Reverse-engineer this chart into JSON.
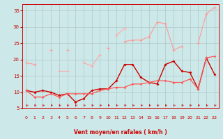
{
  "x": [
    0,
    1,
    2,
    3,
    4,
    5,
    6,
    7,
    8,
    9,
    10,
    11,
    12,
    13,
    14,
    15,
    16,
    17,
    18,
    19,
    20,
    21,
    22,
    23
  ],
  "line1": [
    19.0,
    18.5,
    null,
    23.0,
    null,
    23.0,
    null,
    null,
    null,
    null,
    23.5,
    null,
    25.5,
    26.0,
    26.0,
    27.0,
    31.5,
    31.0,
    23.0,
    24.0,
    null,
    25.0,
    34.0,
    36.0
  ],
  "line2": [
    null,
    null,
    null,
    null,
    16.5,
    16.5,
    null,
    19.0,
    18.0,
    21.5,
    null,
    27.5,
    29.5,
    null,
    null,
    null,
    null,
    null,
    null,
    null,
    null,
    null,
    null,
    null
  ],
  "line3": [
    10.5,
    10.0,
    10.5,
    10.0,
    9.0,
    9.5,
    7.0,
    8.0,
    10.5,
    11.0,
    11.0,
    13.5,
    18.5,
    18.5,
    14.5,
    13.0,
    12.5,
    18.5,
    19.5,
    16.5,
    16.0,
    11.0,
    20.5,
    15.5
  ],
  "line4": [
    10.5,
    8.5,
    8.5,
    9.5,
    8.5,
    9.5,
    9.5,
    9.5,
    9.5,
    10.5,
    11.0,
    11.5,
    11.5,
    12.5,
    12.5,
    13.0,
    13.5,
    13.5,
    13.0,
    13.0,
    14.0,
    11.0,
    20.5,
    21.0
  ],
  "bg_color": "#cce8e8",
  "grid_color": "#b0c8c8",
  "line1_color": "#ff9999",
  "line2_color": "#ffaaaa",
  "line3_color": "#cc0000",
  "line4_color": "#ff5555",
  "arrow_color": "#cc0000",
  "xlabel": "Vent moyen/en rafales ( km/h )",
  "xlim": [
    -0.5,
    23.5
  ],
  "ylim": [
    5,
    37
  ],
  "yticks": [
    5,
    10,
    15,
    20,
    25,
    30,
    35
  ],
  "xticks": [
    0,
    1,
    2,
    3,
    4,
    5,
    6,
    7,
    8,
    9,
    10,
    11,
    12,
    13,
    14,
    15,
    16,
    17,
    18,
    19,
    20,
    21,
    22,
    23
  ]
}
